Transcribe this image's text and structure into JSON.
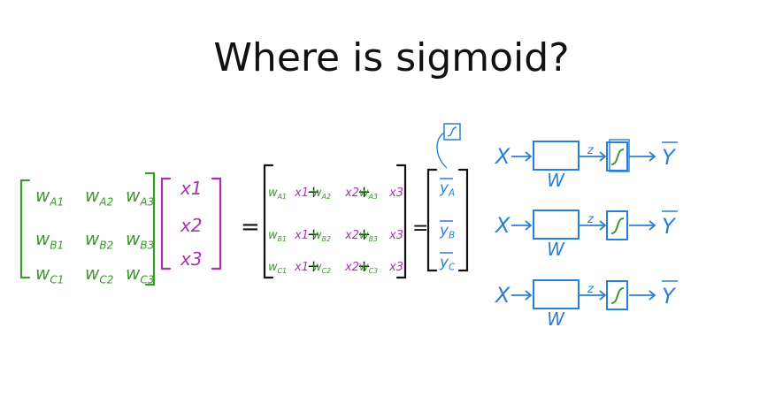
{
  "slide": {
    "title": "Where is sigmoid?",
    "colors": {
      "green": "#3a9a2a",
      "purple": "#a833b0",
      "blue": "#2a7fd4",
      "black": "#111111"
    }
  },
  "weights": {
    "rows": [
      [
        "W_A1",
        "W_A2",
        "W_A3"
      ],
      [
        "W_B1",
        "W_B2",
        "W_B3"
      ],
      [
        "W_C1",
        "W_C2",
        "W_C3"
      ]
    ]
  },
  "inputs": {
    "items": [
      "x1",
      "x2",
      "x3"
    ]
  },
  "products": {
    "rows": [
      [
        [
          "W_A1",
          "x1"
        ],
        [
          "W_A2",
          "x2"
        ],
        [
          "W_A3",
          "x3"
        ]
      ],
      [
        [
          "W_B1",
          "x1"
        ],
        [
          "W_B2",
          "x2"
        ],
        [
          "W_B3",
          "x3"
        ]
      ],
      [
        [
          "W_C1",
          "x1"
        ],
        [
          "W_C2",
          "x2"
        ],
        [
          "W_C3",
          "x3"
        ]
      ]
    ]
  },
  "outputs": {
    "items": [
      "y_A",
      "y_B",
      "y_C"
    ]
  },
  "equals": "=",
  "plus": "+",
  "network": {
    "input_label": "X",
    "weight_label": "W",
    "z_label": "z",
    "output_label": "Y",
    "sigmoid_icon": "sigmoid-s-curve-icon",
    "rows": 3
  }
}
